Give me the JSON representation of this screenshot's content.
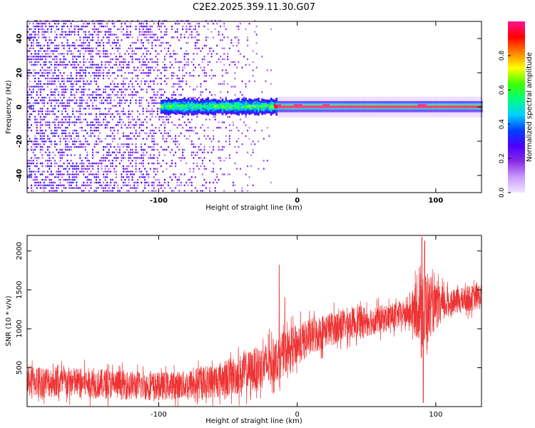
{
  "title": "C2E2.2025.359.11.30.G07",
  "colors": {
    "snr_line": "#ee3333",
    "axis": "#000000",
    "colormap": [
      "#f0e6ff",
      "#c79cff",
      "#8a2be2",
      "#4b00ff",
      "#0040ff",
      "#00d0ff",
      "#00ff80",
      "#40ff00",
      "#ffff00",
      "#ff8000",
      "#ff0000",
      "#ff1493"
    ]
  },
  "chart_data": [
    {
      "type": "heatmap",
      "name": "spectrogram",
      "xlabel": "Height of straight line (km)",
      "ylabel": "Frequency (Hz)",
      "xlim": [
        -195,
        133
      ],
      "ylim": [
        -50,
        50
      ],
      "xticks": [
        -100,
        0,
        100
      ],
      "xtick_labels": [
        "-100",
        "0",
        "100"
      ],
      "yticks": [
        -40,
        -20,
        0,
        20,
        40
      ],
      "ytick_labels": [
        "-40",
        "-20",
        "0",
        "20",
        "40"
      ],
      "colorbar": {
        "label": "Normalized spectral amplitude",
        "range": [
          0,
          1
        ],
        "ticks": [
          0.0,
          0.2,
          0.4,
          0.6,
          0.8
        ],
        "tick_labels": [
          "0.0",
          "0.2",
          "0.4",
          "0.6",
          "0.8"
        ]
      },
      "description_points": {
        "noise_region_x": [
          -195,
          -15
        ],
        "band_center_hz": 0,
        "band_start_x": -100,
        "strong_peaks_x": [
          -15,
          0,
          20,
          90
        ]
      }
    },
    {
      "type": "line",
      "name": "snr",
      "xlabel": "Height of straight line (km)",
      "ylabel": "SNR (10 * v/v)",
      "xlim": [
        -195,
        133
      ],
      "ylim": [
        0,
        2200
      ],
      "xticks": [
        -100,
        0,
        100
      ],
      "xtick_labels": [
        "-100",
        "0",
        "100"
      ],
      "yticks": [
        500,
        1000,
        1500,
        2000
      ],
      "ytick_labels": [
        "500",
        "1000",
        "1500",
        "2000"
      ],
      "trend_x": [
        -195,
        -150,
        -100,
        -80,
        -60,
        -40,
        -20,
        0,
        20,
        40,
        60,
        80,
        88,
        92,
        96,
        110,
        133
      ],
      "trend_mean": [
        330,
        300,
        260,
        280,
        330,
        420,
        550,
        800,
        980,
        1080,
        1120,
        1200,
        1250,
        1250,
        1250,
        1330,
        1420
      ],
      "trend_spread": [
        300,
        280,
        260,
        270,
        320,
        380,
        420,
        380,
        320,
        300,
        260,
        240,
        600,
        1000,
        500,
        230,
        240
      ],
      "spikes": [
        {
          "x": -13,
          "value": 1820
        },
        {
          "x": -9,
          "value": 1400
        },
        {
          "x": 90,
          "value": 2180
        },
        {
          "x": 92,
          "value": 2130
        },
        {
          "x": 91,
          "value": 50
        }
      ]
    }
  ]
}
